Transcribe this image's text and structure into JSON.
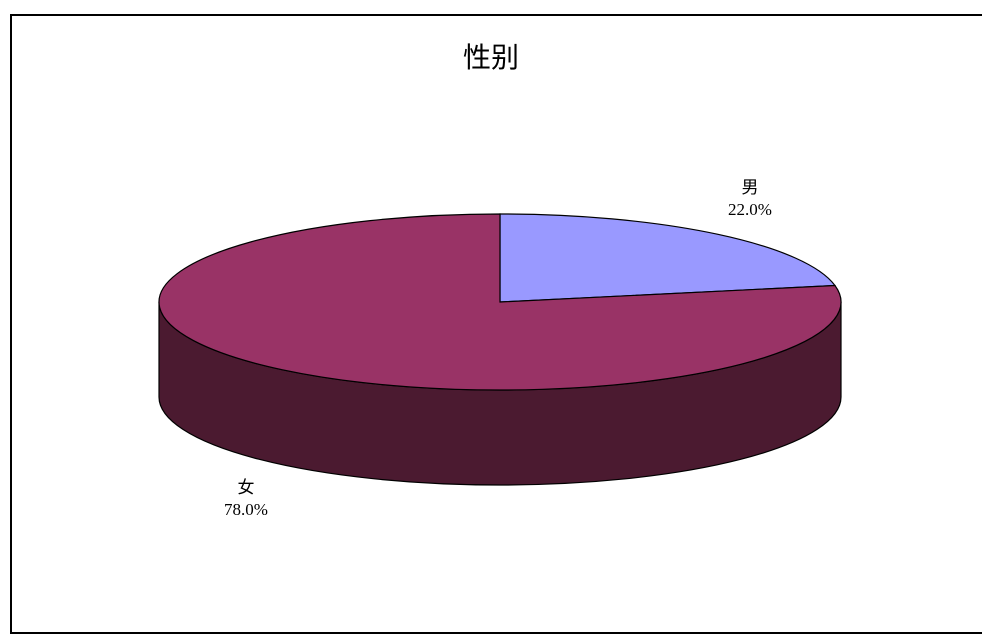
{
  "chart_data": {
    "type": "pie",
    "title": "性别",
    "categories": [
      "男",
      "女"
    ],
    "values": [
      22.0,
      78.0
    ],
    "labels": [
      "22.0%",
      "78.0%"
    ],
    "colors": [
      "#9999ff",
      "#993366"
    ],
    "side_colors": [
      "#4d4d80",
      "#4b1a30"
    ],
    "three_d": true,
    "legend": "none"
  }
}
